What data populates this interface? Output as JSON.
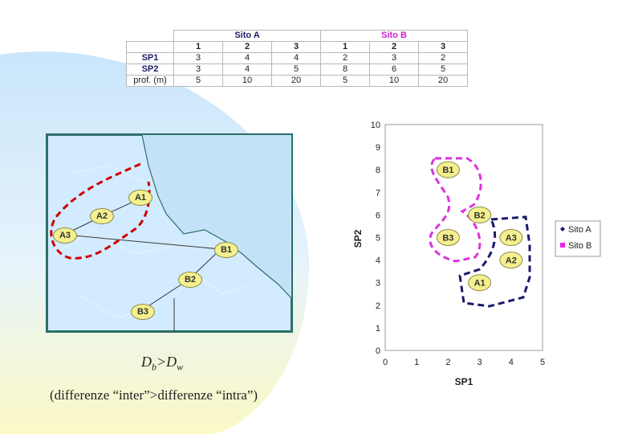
{
  "table": {
    "site_a_header": "Sito A",
    "site_b_header": "Sito B",
    "columns": [
      "1",
      "2",
      "3",
      "1",
      "2",
      "3"
    ],
    "rows": [
      {
        "label": "SP1",
        "values": [
          "3",
          "4",
          "4",
          "2",
          "3",
          "2"
        ]
      },
      {
        "label": "SP2",
        "values": [
          "3",
          "4",
          "5",
          "8",
          "6",
          "5"
        ]
      },
      {
        "label": "prof. (m)",
        "values": [
          "5",
          "10",
          "20",
          "5",
          "10",
          "20"
        ]
      }
    ]
  },
  "map": {
    "labels": {
      "a1": "A1",
      "a2": "A2",
      "a3": "A3",
      "b1": "B1",
      "b2": "B2",
      "b3": "B3"
    },
    "colors": {
      "land": "#d3ebff",
      "sea": "#cde6f7",
      "border": "#2c6e6a",
      "group": "#cc0000"
    }
  },
  "formula": {
    "d": "D",
    "b": "b",
    "gt": ">",
    "w": "w"
  },
  "caption": "(differenze “inter”>differenze “intra”)",
  "chart_data": {
    "type": "scatter",
    "xlabel": "SP1",
    "ylabel": "SP2",
    "xlim": [
      0,
      5
    ],
    "ylim": [
      0,
      10
    ],
    "xticks": [
      "0",
      "1",
      "2",
      "3",
      "4",
      "5"
    ],
    "yticks": [
      "0",
      "1",
      "2",
      "3",
      "4",
      "5",
      "6",
      "7",
      "8",
      "9",
      "10"
    ],
    "legend_position": "right",
    "series": [
      {
        "name": "Sito A",
        "color": "#1b1b6a",
        "marker": "diamond",
        "points": [
          {
            "label": "A1",
            "x": 3,
            "y": 3
          },
          {
            "label": "A2",
            "x": 4,
            "y": 4
          },
          {
            "label": "A3",
            "x": 4,
            "y": 5
          }
        ]
      },
      {
        "name": "Sito B",
        "color": "#ee22ee",
        "marker": "square",
        "points": [
          {
            "label": "B1",
            "x": 2,
            "y": 8
          },
          {
            "label": "B2",
            "x": 3,
            "y": 6
          },
          {
            "label": "B3",
            "x": 2,
            "y": 5
          }
        ]
      }
    ]
  }
}
